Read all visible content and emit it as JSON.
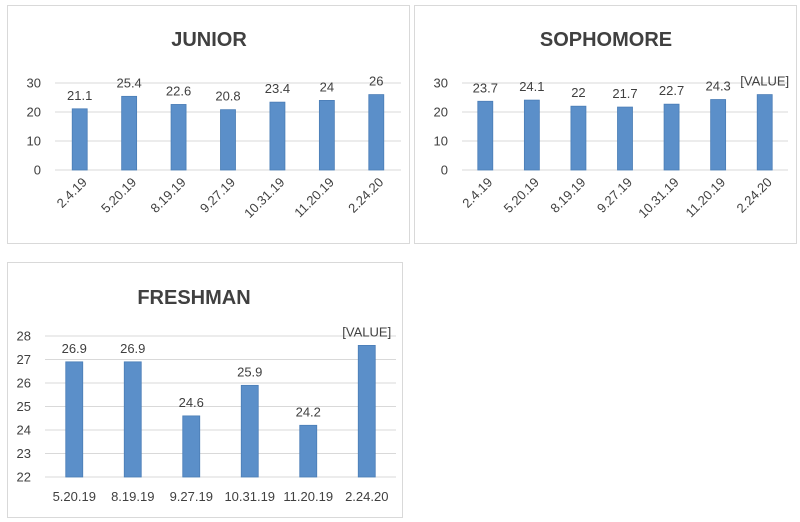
{
  "colors": {
    "bar": "#5b8fc9",
    "grid": "#d9d9d9",
    "text": "#404040"
  },
  "chart_data": [
    {
      "type": "bar",
      "title": "JUNIOR",
      "categories": [
        "2.4.19",
        "5.20.19",
        "8.19.19",
        "9.27.19",
        "10.31.19",
        "11.20.19",
        "2.24.20"
      ],
      "values": [
        21.1,
        25.4,
        22.6,
        20.8,
        23.4,
        24,
        26
      ],
      "data_labels": [
        "21.1",
        "25.4",
        "22.6",
        "20.8",
        "23.4",
        "24",
        "26"
      ],
      "ylim": [
        0,
        30
      ],
      "yticks": [
        "0",
        "10",
        "20",
        "30"
      ],
      "grid": true,
      "xlabel": "",
      "ylabel": ""
    },
    {
      "type": "bar",
      "title": "SOPHOMORE",
      "categories": [
        "2.4.19",
        "5.20.19",
        "8.19.19",
        "9.27.19",
        "10.31.19",
        "11.20.19",
        "2.24.20"
      ],
      "values": [
        23.7,
        24.1,
        22,
        21.7,
        22.7,
        24.3,
        26
      ],
      "data_labels": [
        "23.7",
        "24.1",
        "22",
        "21.7",
        "22.7",
        "24.3",
        "[VALUE]"
      ],
      "ylim": [
        0,
        30
      ],
      "yticks": [
        "0",
        "10",
        "20",
        "30"
      ],
      "grid": true,
      "xlabel": "",
      "ylabel": ""
    },
    {
      "type": "bar",
      "title": "FRESHMAN",
      "categories": [
        "5.20.19",
        "8.19.19",
        "9.27.19",
        "10.31.19",
        "11.20.19",
        "2.24.20"
      ],
      "values": [
        26.9,
        26.9,
        24.6,
        25.9,
        24.2,
        27.6
      ],
      "data_labels": [
        "26.9",
        "26.9",
        "24.6",
        "25.9",
        "24.2",
        "[VALUE]"
      ],
      "ylim": [
        22,
        28
      ],
      "yticks": [
        "22",
        "23",
        "24",
        "25",
        "26",
        "27",
        "28"
      ],
      "grid": true,
      "xlabel": "",
      "ylabel": ""
    }
  ]
}
